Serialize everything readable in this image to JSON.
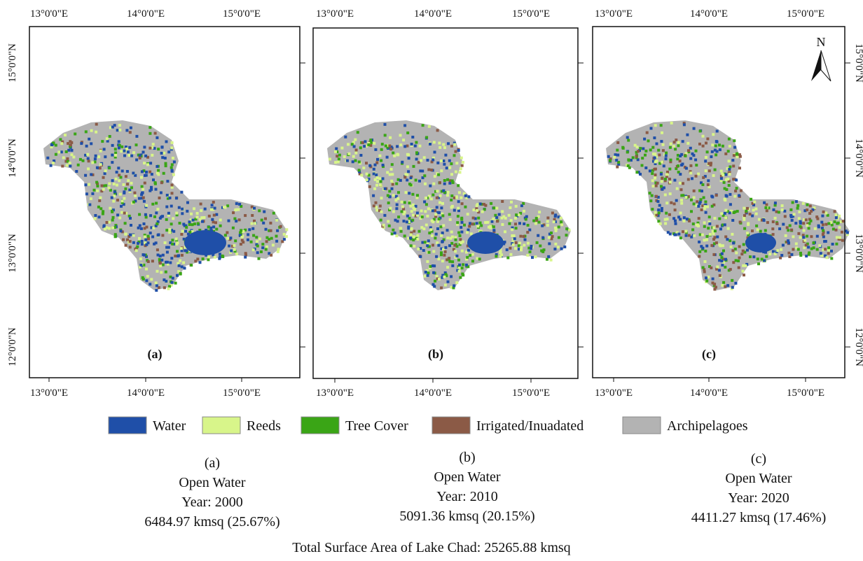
{
  "panels": [
    {
      "label": "(a)",
      "x_ticks": [
        "13°0'0\"E",
        "14°0'0\"E",
        "15°0'0\"E"
      ],
      "y_ticks": [
        "15°0'0\"N",
        "14°0'0\"N",
        "13°0'0\"N",
        "12°0'0\"N"
      ],
      "caption": {
        "label": "(a)",
        "title": "Open Water",
        "year": "Year: 2000",
        "area": "6484.97 kmsq (25.67%)"
      }
    },
    {
      "label": "(b)",
      "x_ticks": [
        "13°0'0\"E",
        "14°0'0\"E",
        "15°0'0\"E"
      ],
      "caption": {
        "label": "(b)",
        "title": "Open Water",
        "year": "Year: 2010",
        "area": "5091.36 kmsq (20.15%)"
      }
    },
    {
      "label": "(c)",
      "x_ticks": [
        "13°0'0\"E",
        "14°0'0\"E",
        "15°0'0\"E"
      ],
      "y_ticks": [
        "15°0'0\"N",
        "14°0'0\"N",
        "13°0'0\"N",
        "12°0'0\"N"
      ],
      "caption": {
        "label": "(c)",
        "title": "Open Water",
        "year": "Year: 2020",
        "area": "4411.27 kmsq (17.46%)"
      }
    }
  ],
  "north_arrow": "N",
  "legend": [
    {
      "label": "Water",
      "color": "#1f4fa8"
    },
    {
      "label": "Reeds",
      "color": "#d8f58a"
    },
    {
      "label": "Tree Cover",
      "color": "#3aa516"
    },
    {
      "label": "Irrigated/Inuadated",
      "color": "#8b5a46"
    },
    {
      "label": "Archipelagoes",
      "color": "#b3b3b3"
    }
  ],
  "footer": "Total Surface Area of Lake Chad: 25265.88 kmsq"
}
